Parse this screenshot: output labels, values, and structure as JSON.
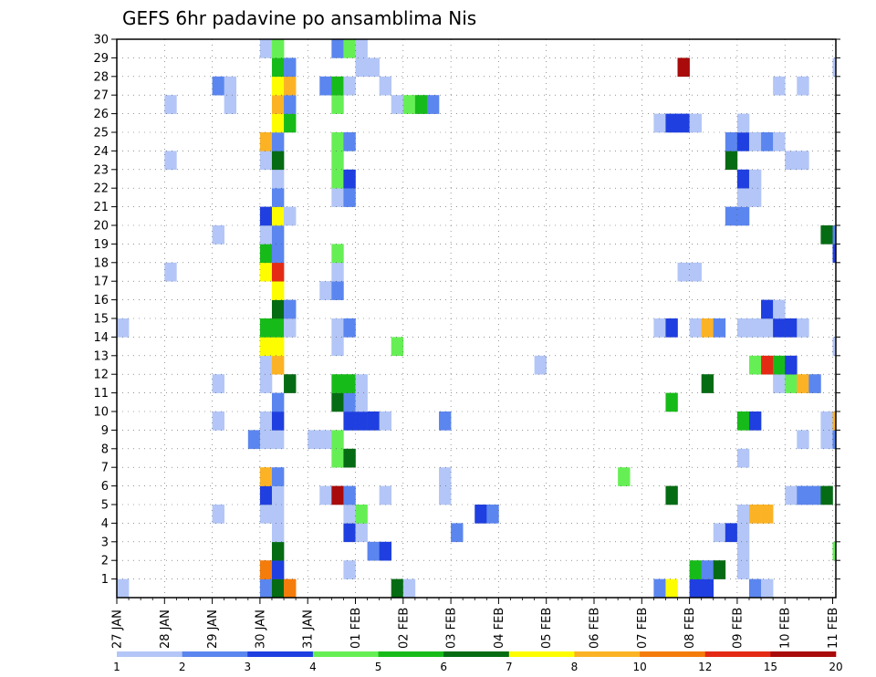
{
  "colors": [
    "#b3c6f7",
    "#5b86ef",
    "#1f3fe0",
    "#66ef55",
    "#17bb19",
    "#056c13",
    "#fdfd00",
    "#fbb325",
    "#f47c0b",
    "#e42a15",
    "#a90a0a"
  ],
  "chart_data": {
    "type": "heatmap",
    "title": "GEFS 6hr padavine po ansamblima Nis",
    "x_start": "27 JAN",
    "x_step_hours": 6,
    "x_tick_labels": [
      "27 JAN",
      "28 JAN",
      "29 JAN",
      "30 JAN",
      "31 JAN",
      "01 FEB",
      "02 FEB",
      "03 FEB",
      "04 FEB",
      "05 FEB",
      "06 FEB",
      "07 FEB",
      "08 FEB",
      "09 FEB",
      "10 FEB",
      "11 FEB"
    ],
    "y_tick_labels": [
      "1",
      "2",
      "3",
      "4",
      "5",
      "6",
      "7",
      "8",
      "9",
      "10",
      "11",
      "12",
      "13",
      "14",
      "15",
      "16",
      "17",
      "18",
      "19",
      "20",
      "21",
      "22",
      "23",
      "24",
      "25",
      "26",
      "27",
      "28",
      "29",
      "30"
    ],
    "colorbar_labels": [
      "1",
      "2",
      "3",
      "4",
      "5",
      "6",
      "7",
      "8",
      "10",
      "12",
      "15",
      "20"
    ],
    "grid": true,
    "note_cells": "each cell = [x_index (6h step from 27 JAN 00Z), member (0-30), color_class (0-10)]",
    "cells": [
      [
        0,
        0,
        0
      ],
      [
        12,
        0,
        1
      ],
      [
        13,
        0,
        5
      ],
      [
        14,
        0,
        8
      ],
      [
        23,
        0,
        5
      ],
      [
        24,
        0,
        0
      ],
      [
        45,
        0,
        1
      ],
      [
        46,
        0,
        6
      ],
      [
        48,
        0,
        2
      ],
      [
        49,
        0,
        2
      ],
      [
        53,
        0,
        1
      ],
      [
        54,
        0,
        0
      ],
      [
        12,
        1,
        8
      ],
      [
        13,
        1,
        2
      ],
      [
        19,
        1,
        0
      ],
      [
        48,
        1,
        4
      ],
      [
        49,
        1,
        1
      ],
      [
        50,
        1,
        5
      ],
      [
        52,
        1,
        0
      ],
      [
        13,
        2,
        5
      ],
      [
        21,
        2,
        1
      ],
      [
        22,
        2,
        2
      ],
      [
        52,
        2,
        0
      ],
      [
        60,
        2,
        3
      ],
      [
        13,
        3,
        0
      ],
      [
        19,
        3,
        2
      ],
      [
        20,
        3,
        0
      ],
      [
        28,
        3,
        1
      ],
      [
        50,
        3,
        0
      ],
      [
        51,
        3,
        2
      ],
      [
        52,
        3,
        0
      ],
      [
        8,
        4,
        0
      ],
      [
        12,
        4,
        0
      ],
      [
        13,
        4,
        0
      ],
      [
        19,
        4,
        0
      ],
      [
        20,
        4,
        3
      ],
      [
        30,
        4,
        2
      ],
      [
        31,
        4,
        1
      ],
      [
        52,
        4,
        0
      ],
      [
        53,
        4,
        7
      ],
      [
        54,
        4,
        7
      ],
      [
        12,
        5,
        2
      ],
      [
        13,
        5,
        0
      ],
      [
        17,
        5,
        0
      ],
      [
        18,
        5,
        10
      ],
      [
        19,
        5,
        1
      ],
      [
        22,
        5,
        0
      ],
      [
        27,
        5,
        0
      ],
      [
        46,
        5,
        5
      ],
      [
        56,
        5,
        0
      ],
      [
        57,
        5,
        1
      ],
      [
        58,
        5,
        1
      ],
      [
        59,
        5,
        5
      ],
      [
        12,
        6,
        7
      ],
      [
        13,
        6,
        1
      ],
      [
        27,
        6,
        0
      ],
      [
        42,
        6,
        3
      ],
      [
        18,
        7,
        3
      ],
      [
        19,
        7,
        5
      ],
      [
        52,
        7,
        0
      ],
      [
        11,
        8,
        1
      ],
      [
        12,
        8,
        0
      ],
      [
        13,
        8,
        0
      ],
      [
        16,
        8,
        0
      ],
      [
        17,
        8,
        0
      ],
      [
        18,
        8,
        3
      ],
      [
        57,
        8,
        0
      ],
      [
        59,
        8,
        0
      ],
      [
        60,
        8,
        1
      ],
      [
        8,
        9,
        0
      ],
      [
        12,
        9,
        0
      ],
      [
        13,
        9,
        2
      ],
      [
        19,
        9,
        2
      ],
      [
        20,
        9,
        2
      ],
      [
        21,
        9,
        2
      ],
      [
        22,
        9,
        0
      ],
      [
        27,
        9,
        1
      ],
      [
        52,
        9,
        4
      ],
      [
        53,
        9,
        2
      ],
      [
        59,
        9,
        0
      ],
      [
        60,
        9,
        7
      ],
      [
        13,
        10,
        1
      ],
      [
        18,
        10,
        5
      ],
      [
        19,
        10,
        1
      ],
      [
        20,
        10,
        0
      ],
      [
        46,
        10,
        4
      ],
      [
        8,
        11,
        0
      ],
      [
        12,
        11,
        0
      ],
      [
        14,
        11,
        5
      ],
      [
        18,
        11,
        4
      ],
      [
        19,
        11,
        4
      ],
      [
        20,
        11,
        0
      ],
      [
        49,
        11,
        5
      ],
      [
        55,
        11,
        0
      ],
      [
        56,
        11,
        3
      ],
      [
        57,
        11,
        7
      ],
      [
        58,
        11,
        1
      ],
      [
        12,
        12,
        0
      ],
      [
        13,
        12,
        7
      ],
      [
        35,
        12,
        0
      ],
      [
        53,
        12,
        3
      ],
      [
        54,
        12,
        9
      ],
      [
        55,
        12,
        4
      ],
      [
        56,
        12,
        2
      ],
      [
        12,
        13,
        6
      ],
      [
        13,
        13,
        6
      ],
      [
        18,
        13,
        0
      ],
      [
        23,
        13,
        3
      ],
      [
        60,
        13,
        0
      ],
      [
        0,
        14,
        0
      ],
      [
        12,
        14,
        4
      ],
      [
        13,
        14,
        4
      ],
      [
        14,
        14,
        0
      ],
      [
        18,
        14,
        0
      ],
      [
        19,
        14,
        1
      ],
      [
        45,
        14,
        0
      ],
      [
        46,
        14,
        2
      ],
      [
        48,
        14,
        0
      ],
      [
        49,
        14,
        7
      ],
      [
        50,
        14,
        1
      ],
      [
        52,
        14,
        0
      ],
      [
        53,
        14,
        0
      ],
      [
        54,
        14,
        0
      ],
      [
        55,
        14,
        2
      ],
      [
        56,
        14,
        2
      ],
      [
        57,
        14,
        0
      ],
      [
        13,
        15,
        5
      ],
      [
        14,
        15,
        1
      ],
      [
        54,
        15,
        2
      ],
      [
        55,
        15,
        0
      ],
      [
        13,
        16,
        6
      ],
      [
        17,
        16,
        0
      ],
      [
        18,
        16,
        1
      ],
      [
        4,
        17,
        0
      ],
      [
        12,
        17,
        6
      ],
      [
        13,
        17,
        9
      ],
      [
        18,
        17,
        0
      ],
      [
        47,
        17,
        0
      ],
      [
        48,
        17,
        0
      ],
      [
        12,
        18,
        4
      ],
      [
        13,
        18,
        1
      ],
      [
        18,
        18,
        3
      ],
      [
        60,
        18,
        2
      ],
      [
        8,
        19,
        0
      ],
      [
        12,
        19,
        0
      ],
      [
        13,
        19,
        1
      ],
      [
        59,
        19,
        5
      ],
      [
        60,
        19,
        1
      ],
      [
        12,
        20,
        2
      ],
      [
        13,
        20,
        6
      ],
      [
        14,
        20,
        0
      ],
      [
        51,
        20,
        1
      ],
      [
        52,
        20,
        1
      ],
      [
        13,
        21,
        1
      ],
      [
        18,
        21,
        0
      ],
      [
        19,
        21,
        1
      ],
      [
        52,
        21,
        0
      ],
      [
        53,
        21,
        0
      ],
      [
        13,
        22,
        0
      ],
      [
        18,
        22,
        3
      ],
      [
        19,
        22,
        2
      ],
      [
        52,
        22,
        2
      ],
      [
        53,
        22,
        0
      ],
      [
        4,
        23,
        0
      ],
      [
        12,
        23,
        0
      ],
      [
        13,
        23,
        5
      ],
      [
        18,
        23,
        3
      ],
      [
        51,
        23,
        5
      ],
      [
        56,
        23,
        0
      ],
      [
        57,
        23,
        0
      ],
      [
        12,
        24,
        7
      ],
      [
        13,
        24,
        1
      ],
      [
        18,
        24,
        3
      ],
      [
        19,
        24,
        1
      ],
      [
        51,
        24,
        1
      ],
      [
        52,
        24,
        2
      ],
      [
        53,
        24,
        0
      ],
      [
        54,
        24,
        1
      ],
      [
        55,
        24,
        0
      ],
      [
        13,
        25,
        6
      ],
      [
        14,
        25,
        4
      ],
      [
        45,
        25,
        0
      ],
      [
        46,
        25,
        2
      ],
      [
        47,
        25,
        2
      ],
      [
        48,
        25,
        0
      ],
      [
        52,
        25,
        0
      ],
      [
        4,
        26,
        0
      ],
      [
        9,
        26,
        0
      ],
      [
        13,
        26,
        7
      ],
      [
        14,
        26,
        1
      ],
      [
        18,
        26,
        3
      ],
      [
        23,
        26,
        0
      ],
      [
        24,
        26,
        3
      ],
      [
        25,
        26,
        4
      ],
      [
        26,
        26,
        1
      ],
      [
        8,
        27,
        1
      ],
      [
        9,
        27,
        0
      ],
      [
        13,
        27,
        6
      ],
      [
        14,
        27,
        7
      ],
      [
        17,
        27,
        1
      ],
      [
        18,
        27,
        4
      ],
      [
        19,
        27,
        0
      ],
      [
        22,
        27,
        0
      ],
      [
        55,
        27,
        0
      ],
      [
        57,
        27,
        0
      ],
      [
        13,
        28,
        4
      ],
      [
        14,
        28,
        1
      ],
      [
        20,
        28,
        0
      ],
      [
        21,
        28,
        0
      ],
      [
        47,
        28,
        10
      ],
      [
        60,
        28,
        0
      ],
      [
        12,
        29,
        0
      ],
      [
        13,
        29,
        3
      ],
      [
        18,
        29,
        1
      ],
      [
        19,
        29,
        3
      ],
      [
        20,
        29,
        0
      ]
    ]
  }
}
